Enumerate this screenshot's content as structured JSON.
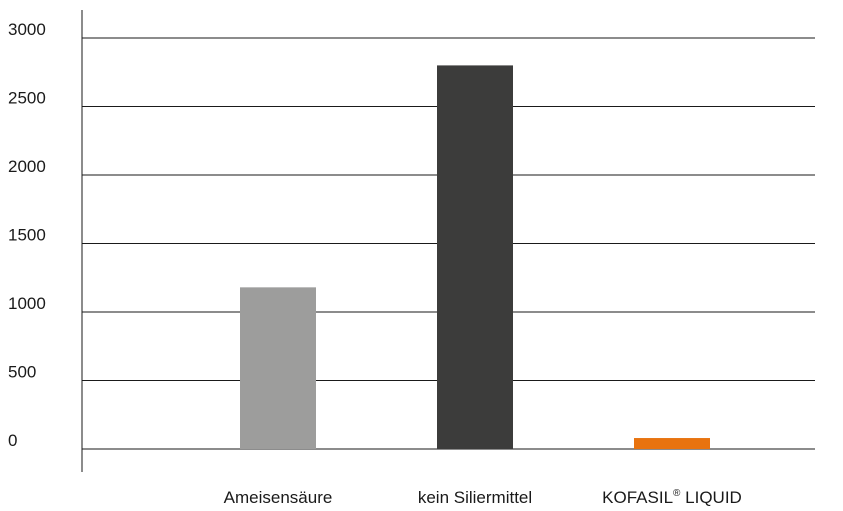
{
  "chart_data": {
    "type": "bar",
    "title": "",
    "xlabel": "",
    "ylabel": "",
    "ylim": [
      0,
      3000
    ],
    "yticks": [
      0,
      500,
      1000,
      1500,
      2000,
      2500,
      3000
    ],
    "grid": true,
    "categories": [
      {
        "name": "Ameisensäure",
        "sup": ""
      },
      {
        "name": "kein Siliermittel",
        "sup": ""
      },
      {
        "name": "KOFASIL",
        "sup": "®",
        "suffix": " LIQUID"
      }
    ],
    "values": [
      1180,
      2800,
      80
    ],
    "colors": [
      "#9d9d9c",
      "#3c3c3b",
      "#e8730f"
    ]
  }
}
